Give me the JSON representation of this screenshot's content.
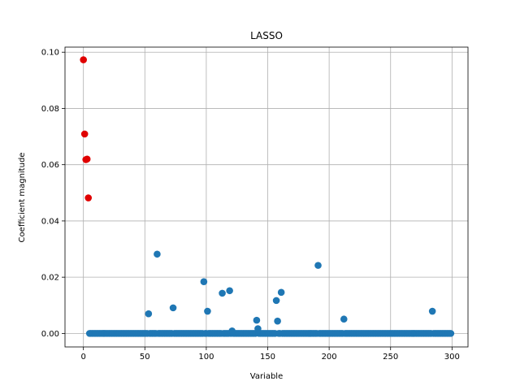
{
  "chart_data": {
    "type": "scatter",
    "title": "LASSO",
    "xlabel": "Variable",
    "ylabel": "Coefficient magnitude",
    "xlim": [
      -15,
      313
    ],
    "ylim": [
      -0.0048,
      0.1018
    ],
    "xticks": [
      0,
      50,
      100,
      150,
      200,
      250,
      300
    ],
    "xtick_labels": [
      "0",
      "50",
      "100",
      "150",
      "200",
      "250",
      "300"
    ],
    "yticks": [
      0.0,
      0.02,
      0.04,
      0.06,
      0.08,
      0.1
    ],
    "ytick_labels": [
      "0.00",
      "0.02",
      "0.04",
      "0.06",
      "0.08",
      "0.10"
    ],
    "grid": true,
    "colors": {
      "series": "#1f77b4",
      "highlight": "#e00000"
    },
    "highlighted_points": [
      {
        "x": 0,
        "y": 0.0973
      },
      {
        "x": 1,
        "y": 0.0709
      },
      {
        "x": 2,
        "y": 0.0618
      },
      {
        "x": 3,
        "y": 0.062
      },
      {
        "x": 4,
        "y": 0.0482
      }
    ],
    "nonzero_points": [
      {
        "x": 53,
        "y": 0.007
      },
      {
        "x": 60,
        "y": 0.0282
      },
      {
        "x": 73,
        "y": 0.0091
      },
      {
        "x": 98,
        "y": 0.0184
      },
      {
        "x": 101,
        "y": 0.0079
      },
      {
        "x": 113,
        "y": 0.0143
      },
      {
        "x": 119,
        "y": 0.0152
      },
      {
        "x": 121,
        "y": 0.0009
      },
      {
        "x": 141,
        "y": 0.0047
      },
      {
        "x": 142,
        "y": 0.0017
      },
      {
        "x": 157,
        "y": 0.0117
      },
      {
        "x": 158,
        "y": 0.0044
      },
      {
        "x": 161,
        "y": 0.0146
      },
      {
        "x": 191,
        "y": 0.0242
      },
      {
        "x": 212,
        "y": 0.0051
      },
      {
        "x": 284,
        "y": 0.0079
      }
    ],
    "zero_range": {
      "from": 5,
      "to": 299,
      "y": 0.0
    }
  }
}
